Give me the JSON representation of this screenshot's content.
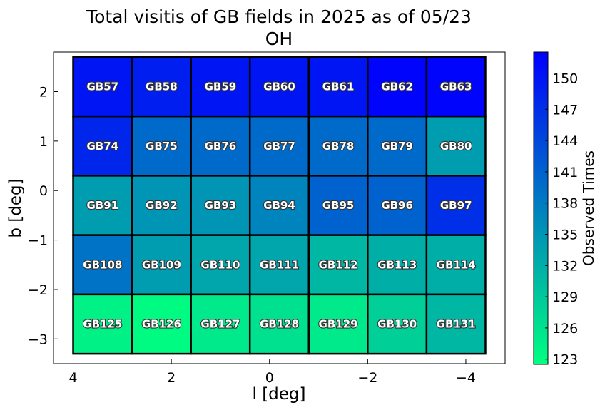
{
  "chart_data": {
    "type": "heatmap",
    "title": "Total visitis of GB fields in 2025 as of 05/23",
    "subtitle": "OH",
    "xlabel": "l [deg]",
    "ylabel": "b [deg]",
    "xlim": [
      4.4,
      -4.8
    ],
    "ylim": [
      -3.5,
      2.8
    ],
    "xticks": [
      4,
      2,
      0,
      -2,
      -4
    ],
    "xtick_labels": [
      "4",
      "2",
      "0",
      "−2",
      "−4"
    ],
    "yticks": [
      2,
      1,
      0,
      -1,
      -2,
      -3
    ],
    "ytick_labels": [
      "2",
      "1",
      "0",
      "−1",
      "−2",
      "−3"
    ],
    "grid": false,
    "colorbar": {
      "label": "Observed Times",
      "range": [
        122.5,
        152.5
      ],
      "ticks": [
        123,
        126,
        129,
        132,
        135,
        138,
        141,
        144,
        147,
        150
      ],
      "colormap": "winter_r",
      "color_low": "#00ff80",
      "color_high": "#0000ff"
    },
    "fields": [
      {
        "name": "GB57",
        "l": 3.4,
        "b": 2.1,
        "value": 150
      },
      {
        "name": "GB58",
        "l": 2.2,
        "b": 2.1,
        "value": 149
      },
      {
        "name": "GB59",
        "l": 1.0,
        "b": 2.1,
        "value": 150
      },
      {
        "name": "GB60",
        "l": -0.2,
        "b": 2.1,
        "value": 150
      },
      {
        "name": "GB61",
        "l": -1.4,
        "b": 2.1,
        "value": 150
      },
      {
        "name": "GB62",
        "l": -2.6,
        "b": 2.1,
        "value": 152
      },
      {
        "name": "GB63",
        "l": -3.8,
        "b": 2.1,
        "value": 152
      },
      {
        "name": "GB74",
        "l": 3.4,
        "b": 0.9,
        "value": 148
      },
      {
        "name": "GB75",
        "l": 2.2,
        "b": 0.9,
        "value": 140
      },
      {
        "name": "GB76",
        "l": 1.0,
        "b": 0.9,
        "value": 140
      },
      {
        "name": "GB77",
        "l": -0.2,
        "b": 0.9,
        "value": 140
      },
      {
        "name": "GB78",
        "l": -1.4,
        "b": 0.9,
        "value": 140
      },
      {
        "name": "GB79",
        "l": -2.6,
        "b": 0.9,
        "value": 140
      },
      {
        "name": "GB80",
        "l": -3.8,
        "b": 0.9,
        "value": 134
      },
      {
        "name": "GB91",
        "l": 3.4,
        "b": -0.3,
        "value": 134
      },
      {
        "name": "GB92",
        "l": 2.2,
        "b": -0.3,
        "value": 135
      },
      {
        "name": "GB93",
        "l": 1.0,
        "b": -0.3,
        "value": 135
      },
      {
        "name": "GB94",
        "l": -0.2,
        "b": -0.3,
        "value": 137
      },
      {
        "name": "GB95",
        "l": -1.4,
        "b": -0.3,
        "value": 141
      },
      {
        "name": "GB96",
        "l": -2.6,
        "b": -0.3,
        "value": 141
      },
      {
        "name": "GB97",
        "l": -3.8,
        "b": -0.3,
        "value": 147
      },
      {
        "name": "GB108",
        "l": 3.4,
        "b": -1.5,
        "value": 139
      },
      {
        "name": "GB109",
        "l": 2.2,
        "b": -1.5,
        "value": 134
      },
      {
        "name": "GB110",
        "l": 1.0,
        "b": -1.5,
        "value": 133
      },
      {
        "name": "GB111",
        "l": -0.2,
        "b": -1.5,
        "value": 133
      },
      {
        "name": "GB112",
        "l": -1.4,
        "b": -1.5,
        "value": 131
      },
      {
        "name": "GB113",
        "l": -2.6,
        "b": -1.5,
        "value": 132
      },
      {
        "name": "GB114",
        "l": -3.8,
        "b": -1.5,
        "value": 132
      },
      {
        "name": "GB125",
        "l": 3.4,
        "b": -2.7,
        "value": 124
      },
      {
        "name": "GB126",
        "l": 2.2,
        "b": -2.7,
        "value": 123
      },
      {
        "name": "GB127",
        "l": 1.0,
        "b": -2.7,
        "value": 125
      },
      {
        "name": "GB128",
        "l": -0.2,
        "b": -2.7,
        "value": 126
      },
      {
        "name": "GB129",
        "l": -1.4,
        "b": -2.7,
        "value": 125
      },
      {
        "name": "GB130",
        "l": -2.6,
        "b": -2.7,
        "value": 128
      },
      {
        "name": "GB131",
        "l": -3.8,
        "b": -2.7,
        "value": 131
      }
    ]
  }
}
